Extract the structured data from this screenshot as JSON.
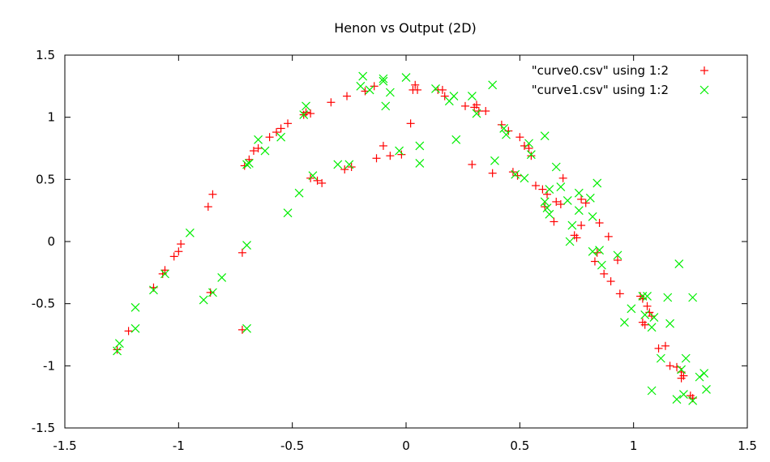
{
  "chart_data": {
    "type": "scatter",
    "title": "Henon vs Output (2D)",
    "xlabel": "",
    "ylabel": "",
    "xlim": [
      -1.5,
      1.5
    ],
    "ylim": [
      -1.5,
      1.5
    ],
    "xticks": [
      "-1.5",
      "-1",
      "-0.5",
      "0",
      "0.5",
      "1",
      "1.5"
    ],
    "yticks": [
      "1.5",
      "1",
      "0.5",
      "0",
      "-0.5",
      "-1",
      "-1.5"
    ],
    "grid": false,
    "legend_position": "top-right",
    "series": [
      {
        "name": "\"curve0.csv\" using 1:2",
        "marker": "plus",
        "color": "#ff0000",
        "points": [
          [
            -1.27,
            -0.87
          ],
          [
            -1.22,
            -0.72
          ],
          [
            -1.11,
            -0.37
          ],
          [
            -1.07,
            -0.26
          ],
          [
            -1.06,
            -0.23
          ],
          [
            -1.02,
            -0.12
          ],
          [
            -1.0,
            -0.08
          ],
          [
            -0.99,
            -0.02
          ],
          [
            -0.87,
            0.28
          ],
          [
            -0.85,
            0.38
          ],
          [
            -0.86,
            -0.41
          ],
          [
            -0.72,
            -0.09
          ],
          [
            -0.72,
            -0.71
          ],
          [
            -0.71,
            0.61
          ],
          [
            -0.69,
            0.66
          ],
          [
            -0.67,
            0.73
          ],
          [
            -0.65,
            0.75
          ],
          [
            -0.6,
            0.84
          ],
          [
            -0.57,
            0.88
          ],
          [
            -0.55,
            0.91
          ],
          [
            -0.52,
            0.95
          ],
          [
            -0.45,
            1.02
          ],
          [
            -0.44,
            1.04
          ],
          [
            -0.42,
            1.03
          ],
          [
            -0.42,
            0.51
          ],
          [
            -0.39,
            0.49
          ],
          [
            -0.37,
            0.47
          ],
          [
            -0.33,
            1.12
          ],
          [
            -0.26,
            1.17
          ],
          [
            -0.27,
            0.58
          ],
          [
            -0.24,
            0.6
          ],
          [
            -0.18,
            1.21
          ],
          [
            -0.14,
            1.25
          ],
          [
            -0.13,
            0.67
          ],
          [
            -0.1,
            0.77
          ],
          [
            -0.07,
            0.69
          ],
          [
            -0.02,
            0.7
          ],
          [
            0.02,
            0.95
          ],
          [
            0.03,
            1.22
          ],
          [
            0.04,
            1.26
          ],
          [
            0.05,
            1.22
          ],
          [
            0.14,
            1.22
          ],
          [
            0.16,
            1.22
          ],
          [
            0.17,
            1.17
          ],
          [
            0.26,
            1.09
          ],
          [
            0.3,
            1.08
          ],
          [
            0.31,
            1.1
          ],
          [
            0.32,
            1.05
          ],
          [
            0.35,
            1.05
          ],
          [
            0.29,
            0.62
          ],
          [
            0.38,
            0.55
          ],
          [
            0.42,
            0.94
          ],
          [
            0.45,
            0.89
          ],
          [
            0.47,
            0.56
          ],
          [
            0.49,
            0.53
          ],
          [
            0.5,
            0.84
          ],
          [
            0.52,
            0.77
          ],
          [
            0.54,
            0.75
          ],
          [
            0.55,
            0.69
          ],
          [
            0.57,
            0.45
          ],
          [
            0.6,
            0.42
          ],
          [
            0.61,
            0.28
          ],
          [
            0.62,
            0.38
          ],
          [
            0.65,
            0.16
          ],
          [
            0.66,
            0.32
          ],
          [
            0.68,
            0.3
          ],
          [
            0.69,
            0.51
          ],
          [
            0.74,
            0.05
          ],
          [
            0.75,
            0.03
          ],
          [
            0.77,
            0.34
          ],
          [
            0.77,
            0.13
          ],
          [
            0.79,
            0.31
          ],
          [
            0.83,
            -0.16
          ],
          [
            0.84,
            -0.09
          ],
          [
            0.85,
            0.15
          ],
          [
            0.87,
            -0.26
          ],
          [
            0.89,
            0.04
          ],
          [
            0.9,
            -0.32
          ],
          [
            0.93,
            -0.15
          ],
          [
            0.94,
            -0.42
          ],
          [
            1.03,
            -0.44
          ],
          [
            1.04,
            -0.46
          ],
          [
            1.04,
            -0.65
          ],
          [
            1.05,
            -0.67
          ],
          [
            1.06,
            -0.52
          ],
          [
            1.07,
            -0.57
          ],
          [
            1.08,
            -0.6
          ],
          [
            1.11,
            -0.86
          ],
          [
            1.14,
            -0.84
          ],
          [
            1.16,
            -1.0
          ],
          [
            1.19,
            -1.01
          ],
          [
            1.21,
            -1.05
          ],
          [
            1.21,
            -1.1
          ],
          [
            1.22,
            -1.08
          ],
          [
            1.25,
            -1.24
          ],
          [
            1.26,
            -1.26
          ]
        ]
      },
      {
        "name": "\"curve1.csv\" using 1:2",
        "marker": "cross",
        "color": "#00ee00",
        "points": [
          [
            -1.27,
            -0.88
          ],
          [
            -1.26,
            -0.82
          ],
          [
            -1.19,
            -0.53
          ],
          [
            -1.19,
            -0.7
          ],
          [
            -1.11,
            -0.39
          ],
          [
            -1.06,
            -0.26
          ],
          [
            -0.95,
            0.07
          ],
          [
            -0.89,
            -0.47
          ],
          [
            -0.85,
            -0.41
          ],
          [
            -0.81,
            -0.29
          ],
          [
            -0.7,
            -0.03
          ],
          [
            -0.7,
            -0.7
          ],
          [
            -0.7,
            0.62
          ],
          [
            -0.69,
            0.63
          ],
          [
            -0.65,
            0.82
          ],
          [
            -0.62,
            0.73
          ],
          [
            -0.55,
            0.84
          ],
          [
            -0.52,
            0.23
          ],
          [
            -0.47,
            0.39
          ],
          [
            -0.45,
            1.02
          ],
          [
            -0.44,
            1.09
          ],
          [
            -0.41,
            0.53
          ],
          [
            -0.3,
            0.62
          ],
          [
            -0.25,
            0.62
          ],
          [
            -0.2,
            1.25
          ],
          [
            -0.19,
            1.33
          ],
          [
            -0.16,
            1.22
          ],
          [
            -0.1,
            1.29
          ],
          [
            -0.1,
            1.31
          ],
          [
            -0.09,
            1.09
          ],
          [
            -0.07,
            1.2
          ],
          [
            -0.03,
            0.73
          ],
          [
            0.0,
            1.32
          ],
          [
            0.06,
            0.77
          ],
          [
            0.06,
            0.63
          ],
          [
            0.13,
            1.23
          ],
          [
            0.19,
            1.13
          ],
          [
            0.21,
            1.17
          ],
          [
            0.22,
            0.82
          ],
          [
            0.29,
            1.17
          ],
          [
            0.31,
            1.03
          ],
          [
            0.38,
            1.26
          ],
          [
            0.39,
            0.65
          ],
          [
            0.43,
            0.91
          ],
          [
            0.44,
            0.86
          ],
          [
            0.48,
            0.54
          ],
          [
            0.52,
            0.51
          ],
          [
            0.54,
            0.79
          ],
          [
            0.55,
            0.7
          ],
          [
            0.61,
            0.85
          ],
          [
            0.61,
            0.32
          ],
          [
            0.62,
            0.27
          ],
          [
            0.63,
            0.22
          ],
          [
            0.63,
            0.42
          ],
          [
            0.66,
            0.6
          ],
          [
            0.68,
            0.44
          ],
          [
            0.71,
            0.33
          ],
          [
            0.72,
            -0.0
          ],
          [
            0.73,
            0.13
          ],
          [
            0.76,
            0.39
          ],
          [
            0.76,
            0.25
          ],
          [
            0.81,
            0.35
          ],
          [
            0.82,
            -0.08
          ],
          [
            0.82,
            0.2
          ],
          [
            0.84,
            0.47
          ],
          [
            0.85,
            -0.07
          ],
          [
            0.86,
            -0.19
          ],
          [
            0.93,
            -0.11
          ],
          [
            0.96,
            -0.65
          ],
          [
            0.99,
            -0.54
          ],
          [
            1.04,
            -0.44
          ],
          [
            1.05,
            -0.59
          ],
          [
            1.06,
            -0.44
          ],
          [
            1.08,
            -0.69
          ],
          [
            1.08,
            -1.2
          ],
          [
            1.09,
            -0.61
          ],
          [
            1.12,
            -0.94
          ],
          [
            1.15,
            -0.45
          ],
          [
            1.16,
            -0.66
          ],
          [
            1.19,
            -1.27
          ],
          [
            1.2,
            -0.18
          ],
          [
            1.21,
            -1.03
          ],
          [
            1.22,
            -1.23
          ],
          [
            1.23,
            -0.94
          ],
          [
            1.26,
            -0.45
          ],
          [
            1.26,
            -1.28
          ],
          [
            1.29,
            -1.09
          ],
          [
            1.31,
            -1.06
          ],
          [
            1.32,
            -1.19
          ]
        ]
      }
    ]
  }
}
